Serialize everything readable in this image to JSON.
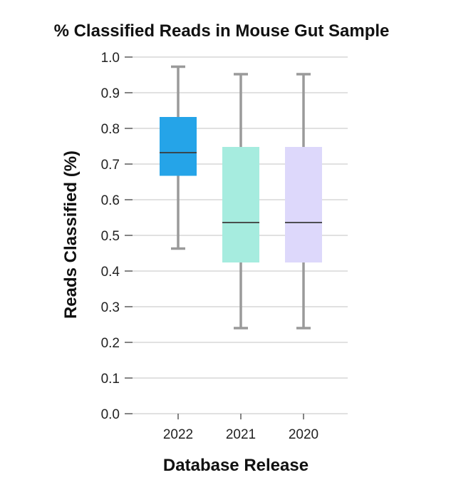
{
  "chart_data": {
    "type": "box",
    "title": "% Classified Reads in Mouse Gut Sample",
    "xlabel": "Database Release",
    "ylabel": "Reads Classified (%)",
    "ylim": [
      0.0,
      1.0
    ],
    "yticks": [
      "0.0",
      "0.1",
      "0.2",
      "0.3",
      "0.4",
      "0.5",
      "0.6",
      "0.7",
      "0.8",
      "0.9",
      "1.0"
    ],
    "categories": [
      "2022",
      "2021",
      "2020"
    ],
    "boxes": [
      {
        "category": "2022",
        "min": 0.463,
        "q1": 0.667,
        "median": 0.732,
        "q3": 0.832,
        "max": 0.973,
        "color": "#25a4e8"
      },
      {
        "category": "2021",
        "min": 0.24,
        "q1": 0.424,
        "median": 0.536,
        "q3": 0.748,
        "max": 0.952,
        "color": "#a6ecdf"
      },
      {
        "category": "2020",
        "min": 0.24,
        "q1": 0.424,
        "median": 0.536,
        "q3": 0.748,
        "max": 0.952,
        "color": "#ddd8fb"
      }
    ],
    "grid": true,
    "legend": "none"
  }
}
